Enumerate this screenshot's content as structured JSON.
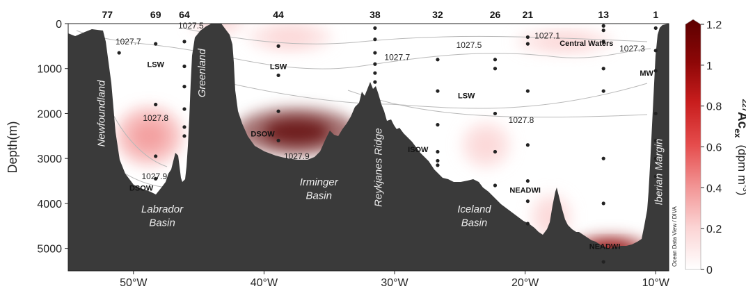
{
  "chart_data": {
    "type": "section",
    "ylabel": "Depth(m)",
    "xlim": [
      -55,
      -9
    ],
    "ylim": [
      5500,
      0
    ],
    "x_ticks": [
      {
        "value": -50,
        "label": "50°W"
      },
      {
        "value": -40,
        "label": "40°W"
      },
      {
        "value": -30,
        "label": "30°W"
      },
      {
        "value": -20,
        "label": "20°W"
      },
      {
        "value": -10,
        "label": "10°W"
      }
    ],
    "y_ticks": [
      {
        "value": 0,
        "label": "0"
      },
      {
        "value": 1000,
        "label": "1000"
      },
      {
        "value": 2000,
        "label": "2000"
      },
      {
        "value": 3000,
        "label": "3000"
      },
      {
        "value": 4000,
        "label": "4000"
      },
      {
        "value": 5000,
        "label": "5000"
      }
    ],
    "stations": [
      {
        "label": "77",
        "lon": -52.0
      },
      {
        "label": "69",
        "lon": -48.3
      },
      {
        "label": "64",
        "lon": -46.1
      },
      {
        "label": "44",
        "lon": -38.9
      },
      {
        "label": "38",
        "lon": -31.5
      },
      {
        "label": "32",
        "lon": -26.7
      },
      {
        "label": "26",
        "lon": -22.3
      },
      {
        "label": "21",
        "lon": -19.8
      },
      {
        "label": "13",
        "lon": -14.0
      },
      {
        "label": "1",
        "lon": -10.0
      }
    ],
    "sample_points": [
      {
        "x": -51.1,
        "y": 650
      },
      {
        "x": -48.3,
        "y": 450
      },
      {
        "x": -48.3,
        "y": 1800
      },
      {
        "x": -48.3,
        "y": 2950
      },
      {
        "x": -48.3,
        "y": 3450
      },
      {
        "x": -46.1,
        "y": 400
      },
      {
        "x": -46.1,
        "y": 950
      },
      {
        "x": -46.1,
        "y": 1400
      },
      {
        "x": -46.1,
        "y": 1900
      },
      {
        "x": -46.1,
        "y": 2300
      },
      {
        "x": -46.1,
        "y": 2500
      },
      {
        "x": -38.9,
        "y": 500
      },
      {
        "x": -38.9,
        "y": 1150
      },
      {
        "x": -38.9,
        "y": 1950
      },
      {
        "x": -38.9,
        "y": 2600
      },
      {
        "x": -31.5,
        "y": 100
      },
      {
        "x": -31.5,
        "y": 350
      },
      {
        "x": -31.5,
        "y": 650
      },
      {
        "x": -31.5,
        "y": 900
      },
      {
        "x": -31.5,
        "y": 1100
      },
      {
        "x": -31.5,
        "y": 1300
      },
      {
        "x": -26.7,
        "y": 800
      },
      {
        "x": -26.7,
        "y": 1500
      },
      {
        "x": -26.7,
        "y": 2250
      },
      {
        "x": -26.7,
        "y": 2850
      },
      {
        "x": -26.7,
        "y": 3050
      },
      {
        "x": -26.7,
        "y": 3150
      },
      {
        "x": -22.3,
        "y": 800
      },
      {
        "x": -22.3,
        "y": 1000
      },
      {
        "x": -22.3,
        "y": 2000
      },
      {
        "x": -22.3,
        "y": 2850
      },
      {
        "x": -22.3,
        "y": 3600
      },
      {
        "x": -19.8,
        "y": 300
      },
      {
        "x": -19.8,
        "y": 450
      },
      {
        "x": -19.8,
        "y": 1500
      },
      {
        "x": -19.8,
        "y": 2700
      },
      {
        "x": -19.8,
        "y": 3500
      },
      {
        "x": -19.8,
        "y": 3950
      },
      {
        "x": -19.8,
        "y": 4450
      },
      {
        "x": -14.0,
        "y": 50
      },
      {
        "x": -14.0,
        "y": 150
      },
      {
        "x": -14.0,
        "y": 400
      },
      {
        "x": -14.0,
        "y": 1000
      },
      {
        "x": -14.0,
        "y": 1500
      },
      {
        "x": -14.0,
        "y": 3000
      },
      {
        "x": -14.0,
        "y": 4000
      },
      {
        "x": -14.0,
        "y": 5300
      },
      {
        "x": -10.0,
        "y": 100
      },
      {
        "x": -10.0,
        "y": 600
      },
      {
        "x": -10.0,
        "y": 1050
      },
      {
        "x": -10.0,
        "y": 2000
      },
      {
        "x": -10.0,
        "y": 2600
      },
      {
        "x": -10.0,
        "y": 3000
      },
      {
        "x": -10.0,
        "y": 3400
      }
    ],
    "high_activity_patches": [
      {
        "x": -48.8,
        "y": 2500,
        "intensity": 0.35
      },
      {
        "x": -37.5,
        "y": 2400,
        "intensity": 1.2
      },
      {
        "x": -23.0,
        "y": 2700,
        "intensity": 0.1
      },
      {
        "x": -17.0,
        "y": 400,
        "intensity": 0.12
      },
      {
        "x": -13.5,
        "y": 5050,
        "intensity": 0.9
      },
      {
        "x": -18.0,
        "y": 4300,
        "intensity": 0.25
      },
      {
        "x": -43.5,
        "y": 0,
        "intensity": 0.15
      },
      {
        "x": -38.0,
        "y": 300,
        "intensity": 0.15
      }
    ],
    "contour_labels": [
      {
        "text": "1027.7",
        "x": -50.4,
        "y": 400
      },
      {
        "text": "1027.5",
        "x": -45.6,
        "y": 50
      },
      {
        "text": "1027.8",
        "x": -48.3,
        "y": 2100
      },
      {
        "text": "1027.9",
        "x": -48.4,
        "y": 3400
      },
      {
        "text": "1027.9",
        "x": -37.5,
        "y": 2950
      },
      {
        "text": "1027.7",
        "x": -29.8,
        "y": 750
      },
      {
        "text": "1027.1",
        "x": -18.3,
        "y": 270
      },
      {
        "text": "1027.5",
        "x": -24.3,
        "y": 480
      },
      {
        "text": "1027.3",
        "x": -11.8,
        "y": 560
      },
      {
        "text": "1027.8",
        "x": -20.3,
        "y": 2150
      }
    ],
    "water_masses": [
      {
        "text": "LSW",
        "x": -48.3,
        "y": 900
      },
      {
        "text": "LSW",
        "x": -38.9,
        "y": 950
      },
      {
        "text": "LSW",
        "x": -24.5,
        "y": 1600
      },
      {
        "text": "DSOW",
        "x": -49.4,
        "y": 3650
      },
      {
        "text": "DSOW",
        "x": -40.1,
        "y": 2450
      },
      {
        "text": "ISOW",
        "x": -28.2,
        "y": 2800
      },
      {
        "text": "Central Waters",
        "x": -15.3,
        "y": 430
      },
      {
        "text": "MW",
        "x": -10.7,
        "y": 1100
      },
      {
        "text": "NEADWI",
        "x": -20.0,
        "y": 3700
      },
      {
        "text": "NEADWI",
        "x": -13.9,
        "y": 4950
      }
    ],
    "region_labels": [
      {
        "text": "Newfoundland",
        "x": -52.2,
        "y": 2000,
        "rotate": -90
      },
      {
        "text": "Greenland",
        "x": -44.5,
        "y": 1100,
        "rotate": -90
      },
      {
        "text": "Labrador",
        "x": -47.8,
        "y": 4200,
        "rotate": 0
      },
      {
        "text": "Basin",
        "x": -47.8,
        "y": 4500,
        "rotate": 0
      },
      {
        "text": "Irminger",
        "x": -35.8,
        "y": 3600,
        "rotate": 0
      },
      {
        "text": "Basin",
        "x": -35.8,
        "y": 3900,
        "rotate": 0
      },
      {
        "text": "Reykjanes Ridge",
        "x": -31.0,
        "y": 3200,
        "rotate": -90
      },
      {
        "text": "Iceland",
        "x": -23.9,
        "y": 4200,
        "rotate": 0
      },
      {
        "text": "Basin",
        "x": -23.9,
        "y": 4500,
        "rotate": 0
      },
      {
        "text": "Iberian Margin",
        "x": -9.5,
        "y": 3300,
        "rotate": -90
      }
    ],
    "credit": "Ocean Data View / DIVA",
    "colorbar": {
      "label_prefix": "227",
      "label_main": "Ac",
      "label_sub": "ex",
      "label_units": "(dpm m",
      "label_units_sup": "-3",
      "label_units_end": ")",
      "min": 0,
      "max": 1.2,
      "ticks": [
        0,
        0.2,
        0.4,
        0.6,
        0.8,
        1,
        1.2
      ],
      "colors": [
        "#ffffff",
        "#fbd3d3",
        "#f29595",
        "#e54c4c",
        "#c81d1d",
        "#8d0707",
        "#5c0000"
      ]
    }
  }
}
